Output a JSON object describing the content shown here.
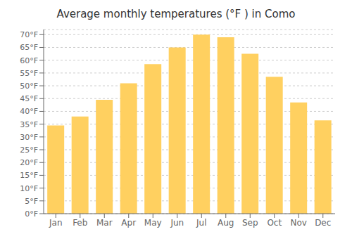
{
  "chart_data": {
    "type": "bar",
    "title": "Average monthly temperatures (°F ) in Como",
    "categories": [
      "Jan",
      "Feb",
      "Mar",
      "Apr",
      "May",
      "Jun",
      "Jul",
      "Aug",
      "Sep",
      "Oct",
      "Nov",
      "Dec"
    ],
    "values": [
      34.5,
      38.0,
      44.5,
      51.0,
      58.5,
      65.0,
      70.0,
      69.0,
      62.5,
      53.5,
      43.5,
      36.5
    ],
    "color": "#FFD060",
    "ylim": [
      0,
      72
    ],
    "yticks": [
      {
        "value": 0,
        "label": "0°F"
      },
      {
        "value": 5,
        "label": "5°F"
      },
      {
        "value": 10,
        "label": "10°F"
      },
      {
        "value": 15,
        "label": "15°F"
      },
      {
        "value": 20,
        "label": "20°F"
      },
      {
        "value": 25,
        "label": "25°F"
      },
      {
        "value": 30,
        "label": "30°F"
      },
      {
        "value": 35,
        "label": "35°F"
      },
      {
        "value": 40,
        "label": "40°F"
      },
      {
        "value": 45,
        "label": "45°F"
      },
      {
        "value": 50,
        "label": "50°F"
      },
      {
        "value": 55,
        "label": "55°F"
      },
      {
        "value": 60,
        "label": "60°F"
      },
      {
        "value": 65,
        "label": "65°F"
      },
      {
        "value": 70,
        "label": "70°F"
      }
    ],
    "grid": true
  }
}
